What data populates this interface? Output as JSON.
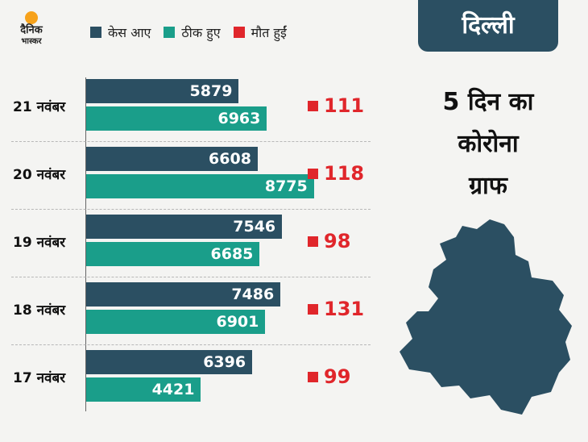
{
  "logo": {
    "line1": "दैनिक",
    "line2": "भास्कर"
  },
  "legend": [
    {
      "label": "केस आए",
      "color": "#2b4f62"
    },
    {
      "label": "ठीक हुए",
      "color": "#1a9e8a"
    },
    {
      "label": "मौत हुईं",
      "color": "#e0262b"
    }
  ],
  "header": {
    "title": "दिल्ली",
    "subtitle_lines": [
      "5 दिन का",
      "कोरोना",
      "ग्राफ"
    ]
  },
  "colors": {
    "cases": "#2b4f62",
    "recovered": "#1a9e8a",
    "deaths": "#e0262b",
    "title_bg": "#2b4f62"
  },
  "map_icon": "delhi-map-icon",
  "chart_data": {
    "type": "bar",
    "orientation": "horizontal",
    "title": "दिल्ली 5 दिन का कोरोना ग्राफ",
    "categories": [
      "21 नवंबर",
      "20 नवंबर",
      "19 नवंबर",
      "18 नवंबर",
      "17 नवंबर"
    ],
    "series": [
      {
        "name": "केस आए",
        "values": [
          5879,
          6608,
          7546,
          7486,
          6396
        ]
      },
      {
        "name": "ठीक हुए",
        "values": [
          6963,
          8775,
          6685,
          6901,
          4421
        ]
      },
      {
        "name": "मौत हुईं",
        "values": [
          111,
          118,
          98,
          131,
          99
        ]
      }
    ],
    "xlim": [
      0,
      9000
    ],
    "grid": false,
    "legend_position": "top"
  }
}
